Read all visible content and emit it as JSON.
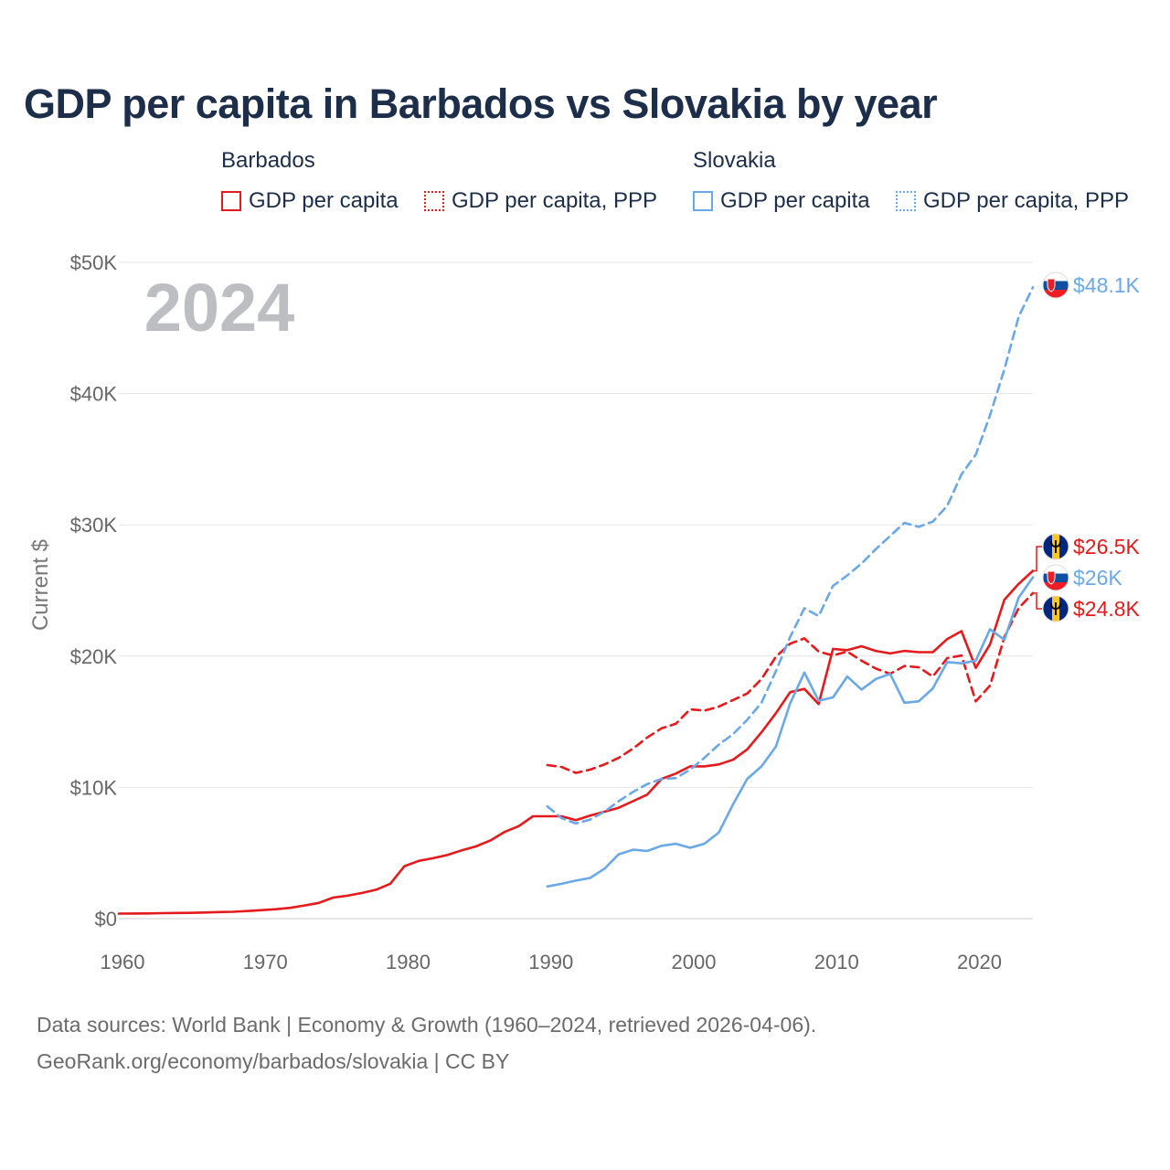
{
  "title": "GDP per capita in Barbados vs Slovakia by year",
  "legend": {
    "groups": [
      {
        "name": "Barbados",
        "items": [
          {
            "label": "GDP per capita",
            "style": "solid",
            "color": "#e41a1c"
          },
          {
            "label": "GDP per capita, PPP",
            "style": "dotted",
            "color": "#e41a1c"
          }
        ]
      },
      {
        "name": "Slovakia",
        "items": [
          {
            "label": "GDP per capita",
            "style": "solid",
            "color": "#6aa8e8"
          },
          {
            "label": "GDP per capita, PPP",
            "style": "dotted",
            "color": "#6aa8e8"
          }
        ]
      }
    ]
  },
  "chart_data": {
    "type": "line",
    "year_watermark": "2024",
    "ylabel": "Current $",
    "xlim": [
      1960,
      2024
    ],
    "ylim": [
      0,
      50000
    ],
    "x_ticks": [
      1960,
      1970,
      1980,
      1990,
      2000,
      2010,
      2020
    ],
    "x_tick_labels": [
      "1960",
      "1970",
      "1980",
      "1990",
      "2000",
      "2010",
      "2020"
    ],
    "y_ticks": [
      0,
      10000,
      20000,
      30000,
      40000,
      50000
    ],
    "y_tick_labels": [
      "$0",
      "$10K",
      "$20K",
      "$30K",
      "$40K",
      "$50K"
    ],
    "grid": true,
    "series": [
      {
        "name": "Barbados GDP per capita",
        "country": "Barbados",
        "color": "#e41a1c",
        "dash": "solid",
        "start_year": 1960,
        "values": [
          380,
          390,
          400,
          420,
          430,
          440,
          470,
          500,
          520,
          580,
          650,
          720,
          820,
          1000,
          1200,
          1600,
          1750,
          1950,
          2200,
          2650,
          4000,
          4400,
          4600,
          4850,
          5200,
          5500,
          5950,
          6600,
          7050,
          7800,
          7800,
          7800,
          7500,
          7850,
          8150,
          8450,
          8950,
          9450,
          10650,
          11050,
          11600,
          11600,
          11750,
          12100,
          12900,
          14200,
          15650,
          17250,
          17500,
          16350,
          20550,
          20450,
          20750,
          20400,
          20200,
          20400,
          20300,
          20300,
          21300,
          21900,
          19100,
          20900,
          24300,
          25500,
          26500
        ],
        "end_label": "$26.5K"
      },
      {
        "name": "Barbados GDP per capita, PPP",
        "country": "Barbados",
        "color": "#e41a1c",
        "dash": "dashed",
        "start_year": 1990,
        "values": [
          11700,
          11550,
          11100,
          11350,
          11750,
          12250,
          12950,
          13800,
          14500,
          14850,
          15950,
          15850,
          16150,
          16650,
          17150,
          18250,
          19950,
          20950,
          21350,
          20350,
          20050,
          20350,
          19650,
          19050,
          18650,
          19250,
          19150,
          18450,
          19850,
          20050,
          16550,
          17750,
          21450,
          23650,
          24800
        ],
        "end_label": "$24.8K"
      },
      {
        "name": "Slovakia GDP per capita",
        "country": "Slovakia",
        "color": "#6aa8e8",
        "dash": "solid",
        "start_year": 1990,
        "values": [
          2450,
          2650,
          2900,
          3100,
          3800,
          4900,
          5250,
          5150,
          5550,
          5700,
          5400,
          5700,
          6550,
          8700,
          10650,
          11600,
          13100,
          16400,
          18750,
          16600,
          16850,
          18450,
          17450,
          18250,
          18650,
          16450,
          16550,
          17550,
          19550,
          19450,
          19650,
          22050,
          21250,
          24450,
          26000
        ],
        "end_label": "$26K"
      },
      {
        "name": "Slovakia GDP per capita, PPP",
        "country": "Slovakia",
        "color": "#6aa8e8",
        "dash": "dashed",
        "start_year": 1990,
        "values": [
          8550,
          7650,
          7250,
          7550,
          8150,
          8950,
          9650,
          10250,
          10650,
          10700,
          11350,
          12250,
          13250,
          14050,
          15150,
          16450,
          18850,
          21450,
          23650,
          23050,
          25350,
          26150,
          27050,
          28150,
          29150,
          30150,
          29850,
          30250,
          31450,
          33850,
          35350,
          38350,
          41850,
          45850,
          48100
        ],
        "end_label": "$48.1K"
      }
    ]
  },
  "sources": {
    "line1": "Data sources: World Bank | Economy & Growth (1960–2024, retrieved 2026-04-06).",
    "line2": "GeoRank.org/economy/barbados/slovakia | CC BY"
  }
}
